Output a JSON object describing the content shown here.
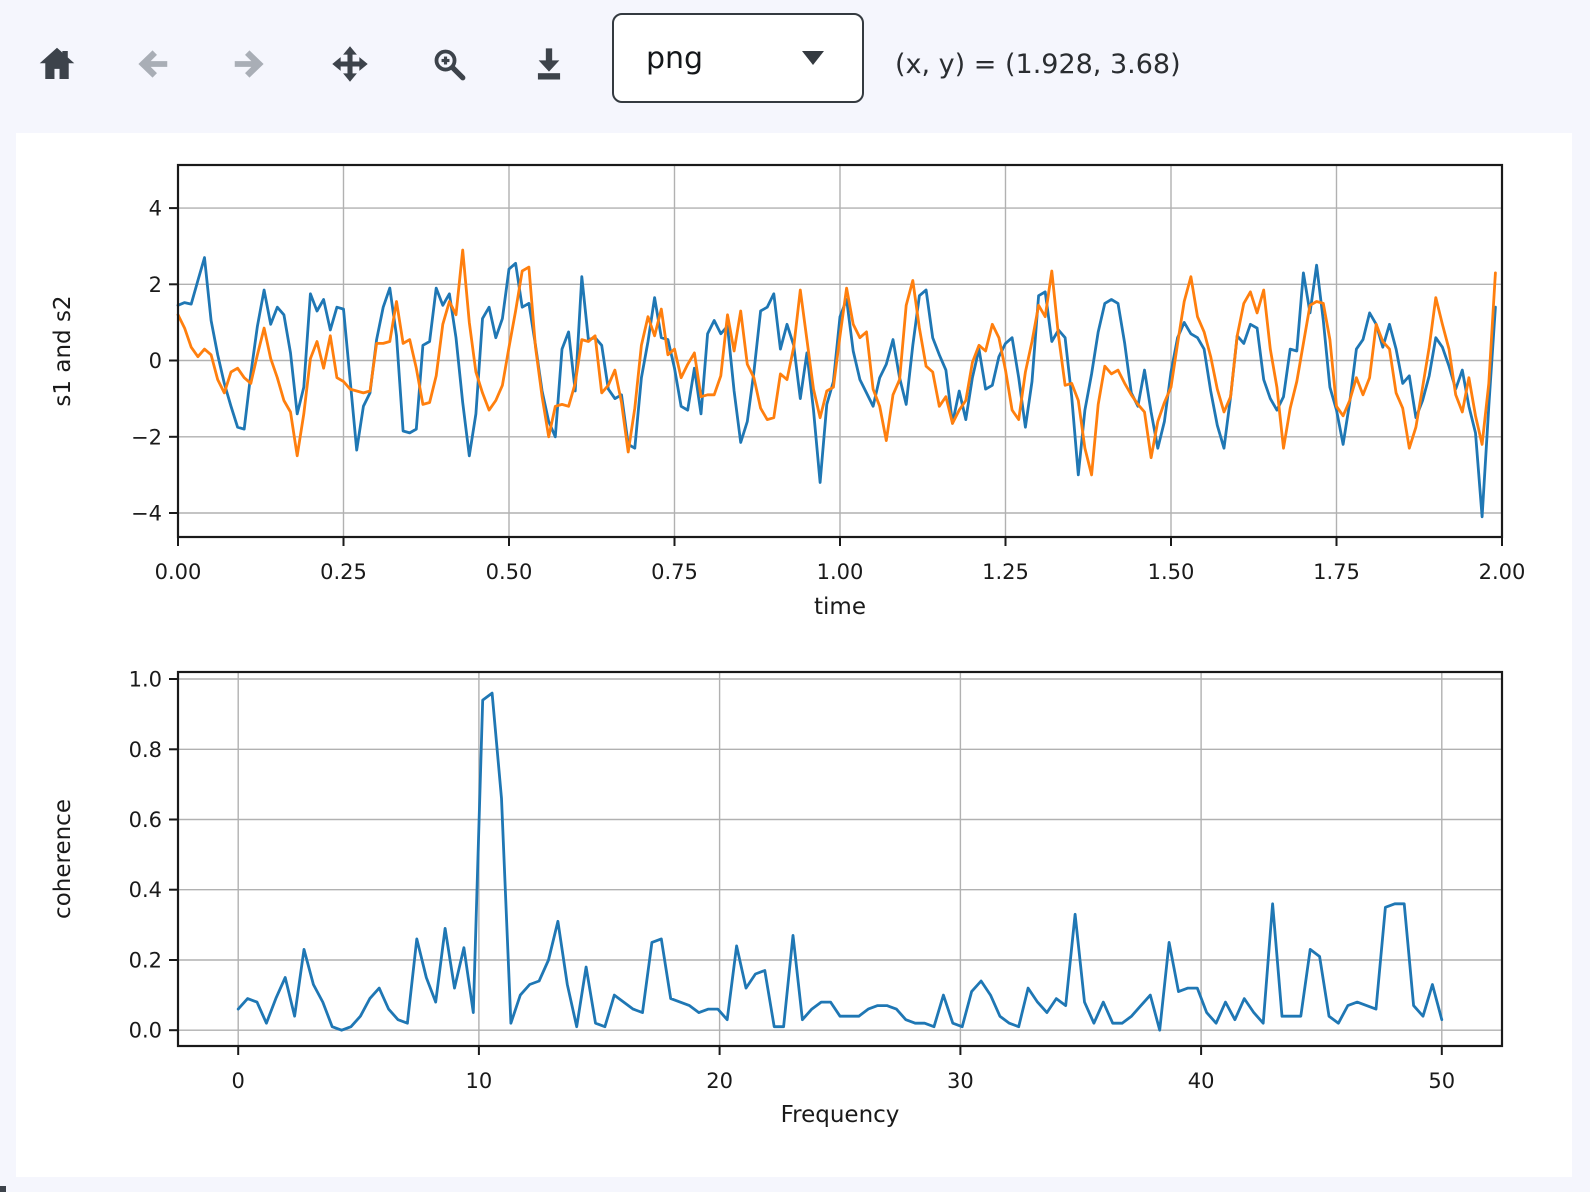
{
  "toolbar": {
    "buttons": [
      {
        "name": "home",
        "icon": "home-icon",
        "enabled": true
      },
      {
        "name": "back",
        "icon": "arrow-left-icon",
        "enabled": false
      },
      {
        "name": "forward",
        "icon": "arrow-right-icon",
        "enabled": false
      },
      {
        "name": "pan",
        "icon": "move-arrows-icon",
        "enabled": true
      },
      {
        "name": "zoom",
        "icon": "magnifier-plus-icon",
        "enabled": true
      },
      {
        "name": "download",
        "icon": "download-icon",
        "enabled": true
      }
    ],
    "format_select": {
      "value": "png"
    },
    "coordinate_readout": "(x, y) = (1.928, 3.68)"
  },
  "colors": {
    "background": "#f5f6fd",
    "figure_background": "#ffffff",
    "icon_dark": "#3d434b",
    "icon_disabled": "#a9aeb6",
    "series_blue": "#1f77b4",
    "series_orange": "#ff7f0e",
    "grid": "#b1b1b1",
    "text": "#1a1a1a"
  },
  "chart_data": [
    {
      "type": "line",
      "name": "signals",
      "title": "",
      "xlabel": "time",
      "ylabel": "s1 and s2",
      "grid": true,
      "legend": "none",
      "xlim": [
        0,
        2
      ],
      "ylim": [
        -4.63,
        5.13
      ],
      "xticks": {
        "values": [
          0,
          0.25,
          0.5,
          0.75,
          1.0,
          1.25,
          1.5,
          1.75,
          2.0
        ],
        "labels": [
          "0.00",
          "0.25",
          "0.50",
          "0.75",
          "1.00",
          "1.25",
          "1.50",
          "1.75",
          "2.00"
        ]
      },
      "yticks": {
        "values": [
          -4,
          -2,
          0,
          2,
          4
        ],
        "labels": [
          "−4",
          "−2",
          "0",
          "2",
          "4"
        ]
      },
      "x_start": 0,
      "dx": 0.01,
      "series": [
        {
          "name": "s1",
          "color": "#1f77b4",
          "values": [
            1.45,
            1.52,
            1.48,
            2.1,
            2.7,
            1.05,
            0.15,
            -0.6,
            -1.2,
            -1.75,
            -1.8,
            -0.35,
            0.9,
            1.85,
            0.95,
            1.4,
            1.2,
            0.2,
            -1.4,
            -0.7,
            1.75,
            1.3,
            1.6,
            0.8,
            1.4,
            1.35,
            -0.5,
            -2.35,
            -1.2,
            -0.85,
            0.55,
            1.4,
            1.9,
            0.65,
            -1.85,
            -1.9,
            -1.8,
            0.4,
            0.5,
            1.9,
            1.45,
            1.75,
            0.6,
            -1.1,
            -2.5,
            -1.4,
            1.1,
            1.4,
            0.6,
            1.1,
            2.4,
            2.55,
            1.4,
            1.5,
            0.4,
            -0.8,
            -1.6,
            -2.0,
            0.3,
            0.75,
            -0.8,
            2.2,
            0.55,
            0.6,
            0.4,
            -0.75,
            -1.0,
            -0.9,
            -2.2,
            -2.3,
            -0.45,
            0.5,
            1.65,
            0.6,
            0.55,
            -0.2,
            -1.2,
            -1.3,
            -0.2,
            -1.4,
            0.7,
            1.05,
            0.7,
            0.9,
            -0.8,
            -2.15,
            -1.6,
            -0.3,
            1.3,
            1.4,
            1.75,
            0.3,
            0.95,
            0.4,
            -1.0,
            0.2,
            -1.3,
            -3.2,
            -1.15,
            -0.55,
            1.15,
            1.6,
            0.25,
            -0.5,
            -0.85,
            -1.2,
            -0.45,
            -0.1,
            0.55,
            -0.45,
            -1.15,
            0.4,
            1.7,
            1.85,
            0.6,
            0.15,
            -0.25,
            -1.65,
            -0.8,
            -1.55,
            -0.45,
            0.3,
            -0.75,
            -0.65,
            0.1,
            0.45,
            0.6,
            -0.45,
            -1.75,
            -0.55,
            1.7,
            1.8,
            0.5,
            0.8,
            0.6,
            -0.95,
            -3.0,
            -1.3,
            -0.35,
            0.75,
            1.5,
            1.6,
            1.5,
            0.45,
            -0.85,
            -1.2,
            -0.25,
            -1.35,
            -2.3,
            -1.6,
            -0.3,
            0.6,
            1.0,
            0.7,
            0.6,
            0.3,
            -0.8,
            -1.7,
            -2.3,
            -0.95,
            0.65,
            0.45,
            0.95,
            0.85,
            -0.5,
            -1.0,
            -1.3,
            -0.95,
            0.3,
            0.25,
            2.3,
            1.25,
            2.5,
            1.05,
            -0.7,
            -1.3,
            -2.2,
            -1.1,
            0.3,
            0.55,
            1.25,
            0.95,
            0.35,
            0.95,
            0.3,
            -0.6,
            -0.4,
            -1.5,
            -1.05,
            -0.4,
            0.6,
            0.35,
            -0.15,
            -0.75,
            -0.25,
            -1.2,
            -1.9,
            -4.1,
            -1.2,
            1.4
          ]
        },
        {
          "name": "s2",
          "color": "#ff7f0e",
          "values": [
            1.2,
            0.85,
            0.35,
            0.1,
            0.3,
            0.15,
            -0.5,
            -0.85,
            -0.3,
            -0.2,
            -0.45,
            -0.6,
            0.15,
            0.85,
            0.05,
            -0.45,
            -1.05,
            -1.35,
            -2.5,
            -1.4,
            0.05,
            0.5,
            -0.2,
            0.65,
            -0.45,
            -0.55,
            -0.75,
            -0.8,
            -0.85,
            -0.8,
            0.45,
            0.45,
            0.5,
            1.55,
            0.45,
            0.55,
            -0.2,
            -1.15,
            -1.1,
            -0.4,
            0.95,
            1.55,
            1.2,
            2.9,
            1.0,
            -0.3,
            -0.85,
            -1.3,
            -1.05,
            -0.65,
            0.35,
            1.3,
            2.35,
            2.45,
            0.35,
            -0.95,
            -2.0,
            -1.2,
            -1.15,
            -1.2,
            -0.6,
            0.55,
            0.5,
            0.65,
            -0.85,
            -0.65,
            -0.25,
            -1.1,
            -2.4,
            -1.25,
            0.4,
            1.15,
            0.65,
            1.35,
            0.15,
            0.3,
            -0.45,
            -0.1,
            0.2,
            -0.95,
            -0.9,
            -0.9,
            -0.4,
            1.2,
            0.25,
            1.3,
            -0.1,
            -0.45,
            -1.25,
            -1.55,
            -1.5,
            -0.35,
            -0.5,
            0.35,
            1.85,
            0.55,
            -0.75,
            -1.5,
            -0.8,
            -0.7,
            0.65,
            1.9,
            0.95,
            0.6,
            0.75,
            -0.75,
            -1.2,
            -2.1,
            -0.9,
            -0.5,
            1.45,
            2.1,
            0.85,
            -0.15,
            -0.3,
            -1.2,
            -0.95,
            -1.65,
            -1.3,
            -1.05,
            -0.05,
            0.4,
            0.25,
            0.95,
            0.6,
            -0.25,
            -1.3,
            -1.55,
            -0.3,
            0.5,
            1.45,
            1.15,
            2.35,
            0.65,
            -0.65,
            -0.6,
            -1.05,
            -2.3,
            -3.0,
            -1.15,
            -0.15,
            -0.35,
            -0.25,
            -0.6,
            -0.9,
            -1.15,
            -1.35,
            -2.55,
            -1.6,
            -1.1,
            -0.7,
            0.45,
            1.55,
            2.2,
            1.15,
            0.75,
            0.1,
            -0.75,
            -1.35,
            -0.95,
            0.65,
            1.5,
            1.8,
            1.25,
            1.85,
            0.3,
            -0.7,
            -2.3,
            -1.25,
            -0.55,
            0.45,
            1.45,
            1.55,
            1.5,
            0.55,
            -1.2,
            -1.45,
            -1.05,
            -0.45,
            -0.9,
            -0.45,
            0.95,
            0.5,
            0.3,
            -0.85,
            -1.25,
            -2.3,
            -1.75,
            -0.7,
            0.35,
            1.65,
            0.95,
            0.3,
            -0.9,
            -1.35,
            -0.45,
            -1.45,
            -2.2,
            -0.6,
            2.3
          ]
        }
      ]
    },
    {
      "type": "line",
      "name": "coherence",
      "title": "",
      "xlabel": "Frequency",
      "ylabel": "coherence",
      "grid": true,
      "legend": "none",
      "xlim": [
        -2.5,
        52.5
      ],
      "ylim": [
        -0.045,
        1.02
      ],
      "xticks": {
        "values": [
          0,
          10,
          20,
          30,
          40,
          50
        ],
        "labels": [
          "0",
          "10",
          "20",
          "30",
          "40",
          "50"
        ]
      },
      "yticks": {
        "values": [
          0,
          0.2,
          0.4,
          0.6,
          0.8,
          1.0
        ],
        "labels": [
          "0.0",
          "0.2",
          "0.4",
          "0.6",
          "0.8",
          "1.0"
        ]
      },
      "x_start": 0,
      "dx": 0.390625,
      "series": [
        {
          "name": "coherence",
          "color": "#1f77b4",
          "values": [
            0.06,
            0.09,
            0.08,
            0.02,
            0.09,
            0.15,
            0.04,
            0.23,
            0.13,
            0.08,
            0.01,
            0.0,
            0.01,
            0.04,
            0.09,
            0.12,
            0.06,
            0.03,
            0.02,
            0.26,
            0.15,
            0.08,
            0.29,
            0.12,
            0.235,
            0.05,
            0.94,
            0.96,
            0.66,
            0.02,
            0.1,
            0.13,
            0.14,
            0.2,
            0.31,
            0.13,
            0.01,
            0.18,
            0.02,
            0.01,
            0.1,
            0.08,
            0.06,
            0.05,
            0.25,
            0.26,
            0.09,
            0.08,
            0.07,
            0.05,
            0.06,
            0.06,
            0.03,
            0.24,
            0.12,
            0.16,
            0.17,
            0.01,
            0.01,
            0.27,
            0.03,
            0.06,
            0.08,
            0.08,
            0.04,
            0.04,
            0.04,
            0.06,
            0.07,
            0.07,
            0.06,
            0.03,
            0.02,
            0.02,
            0.01,
            0.1,
            0.02,
            0.01,
            0.11,
            0.14,
            0.1,
            0.04,
            0.02,
            0.01,
            0.12,
            0.08,
            0.05,
            0.09,
            0.07,
            0.33,
            0.08,
            0.02,
            0.08,
            0.02,
            0.02,
            0.04,
            0.07,
            0.1,
            0.0,
            0.25,
            0.11,
            0.12,
            0.12,
            0.05,
            0.02,
            0.08,
            0.03,
            0.09,
            0.05,
            0.02,
            0.36,
            0.04,
            0.04,
            0.04,
            0.23,
            0.21,
            0.04,
            0.02,
            0.07,
            0.08,
            0.07,
            0.06,
            0.35,
            0.36,
            0.36,
            0.07,
            0.04,
            0.13,
            0.03
          ]
        }
      ]
    }
  ]
}
